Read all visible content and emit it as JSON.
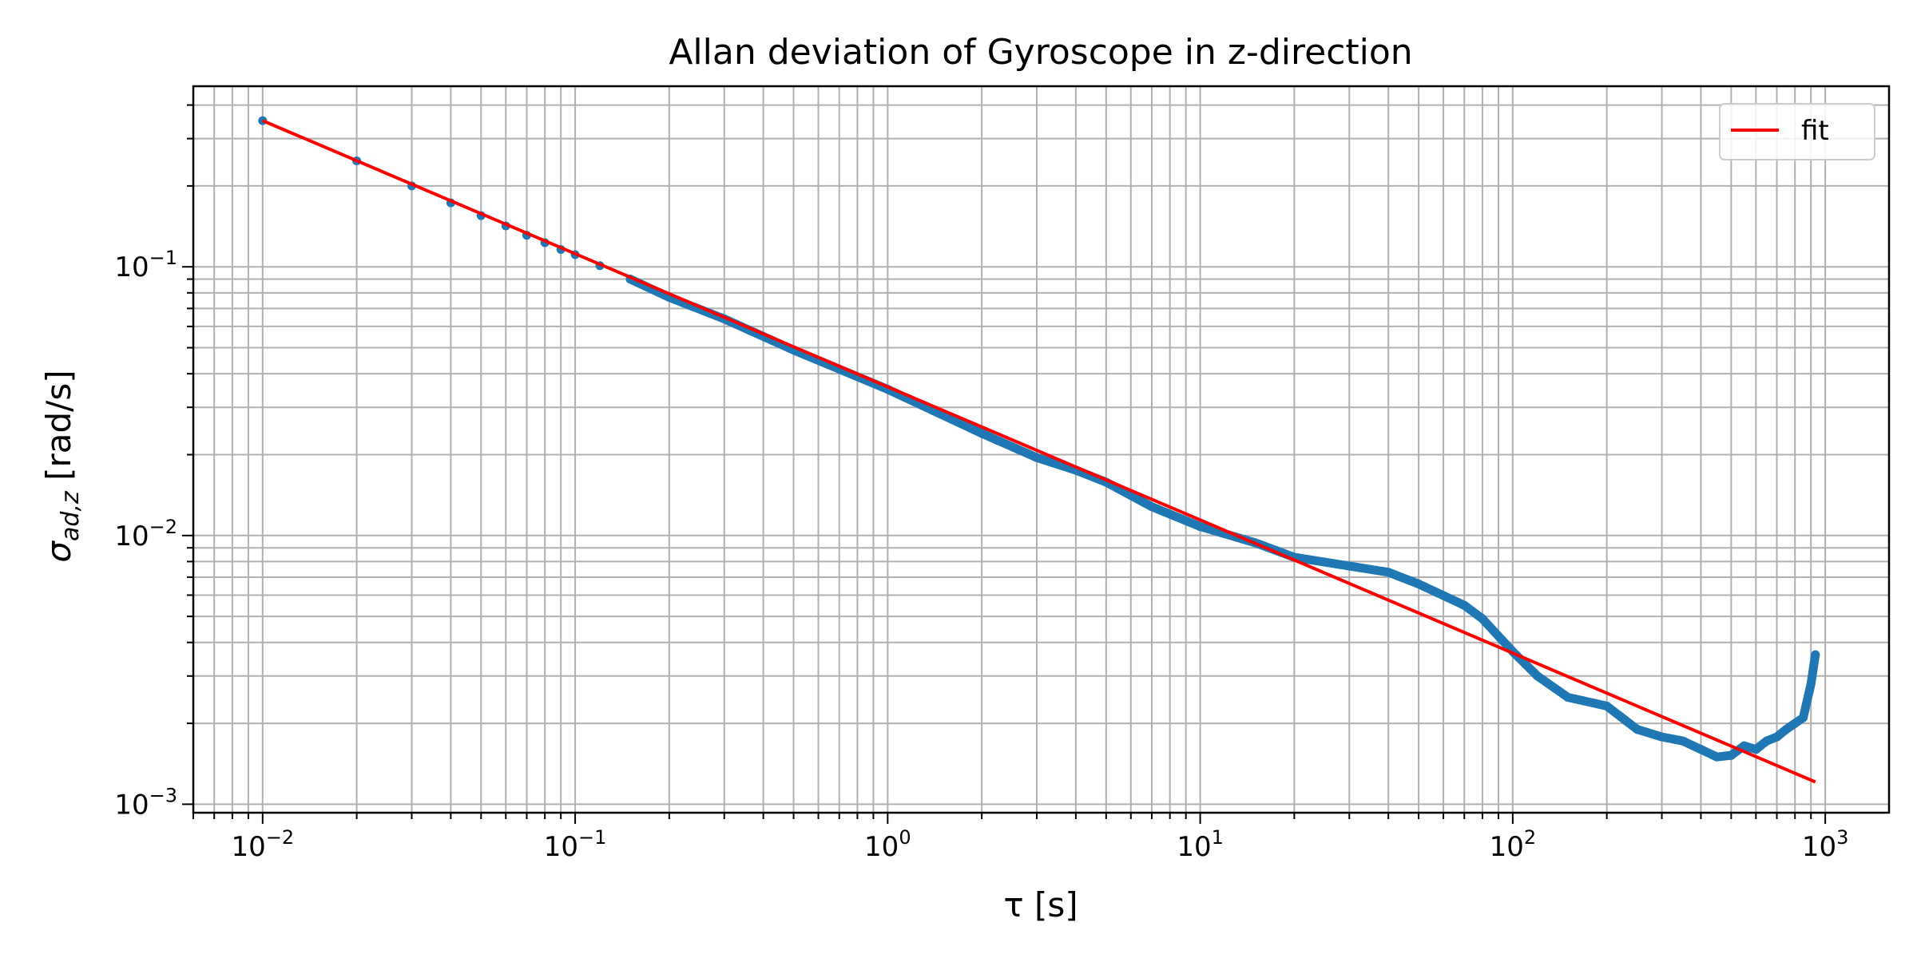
{
  "chart_data": {
    "type": "line",
    "title": "Allan deviation of Gyroscope in z-direction",
    "xlabel": "τ [s]",
    "ylabel": "σ",
    "ylabel_sub": "ad,z",
    "ylabel_unit": " [rad/s]",
    "x_scale": "log",
    "y_scale": "log",
    "xlim": [
      0.006,
      1600
    ],
    "ylim": [
      0.00093,
      0.47
    ],
    "grid": "major and minor",
    "legend_position": "top-right",
    "x_ticks": [
      {
        "base": "10",
        "exp": "−2",
        "value": 0.01
      },
      {
        "base": "10",
        "exp": "−1",
        "value": 0.1
      },
      {
        "base": "10",
        "exp": "0",
        "value": 1
      },
      {
        "base": "10",
        "exp": "1",
        "value": 10
      },
      {
        "base": "10",
        "exp": "2",
        "value": 100
      },
      {
        "base": "10",
        "exp": "3",
        "value": 1000
      }
    ],
    "y_ticks": [
      {
        "base": "10",
        "exp": "−3",
        "value": 0.001
      },
      {
        "base": "10",
        "exp": "−2",
        "value": 0.01
      },
      {
        "base": "10",
        "exp": "−1",
        "value": 0.1
      }
    ],
    "series": [
      {
        "name": "",
        "kind": "scatter",
        "color": "#1f77b4",
        "x": [
          0.01,
          0.02,
          0.03,
          0.04,
          0.05,
          0.06,
          0.07,
          0.08,
          0.09,
          0.1,
          0.12,
          0.15,
          0.2,
          0.3,
          0.5,
          1,
          2,
          3,
          4,
          5,
          7,
          10,
          15,
          20,
          30,
          40,
          50,
          70,
          80,
          100,
          120,
          150,
          200,
          250,
          300,
          350,
          400,
          450,
          500,
          550,
          600,
          650,
          700,
          750,
          800,
          850,
          900,
          930
        ],
        "y": [
          0.35,
          0.248,
          0.2,
          0.173,
          0.155,
          0.142,
          0.131,
          0.123,
          0.116,
          0.111,
          0.101,
          0.09,
          0.077,
          0.064,
          0.049,
          0.035,
          0.024,
          0.0195,
          0.0175,
          0.0158,
          0.0128,
          0.0108,
          0.0094,
          0.0083,
          0.0077,
          0.0073,
          0.0066,
          0.0055,
          0.0049,
          0.0037,
          0.003,
          0.0025,
          0.00232,
          0.0019,
          0.00178,
          0.00172,
          0.0016,
          0.0015,
          0.00152,
          0.00165,
          0.0016,
          0.00172,
          0.00178,
          0.0019,
          0.002,
          0.0021,
          0.0028,
          0.0036
        ]
      },
      {
        "name": "fit",
        "kind": "line",
        "color": "#ff0000",
        "x": [
          0.01,
          930
        ],
        "y": [
          0.35,
          0.00121
        ]
      }
    ]
  }
}
